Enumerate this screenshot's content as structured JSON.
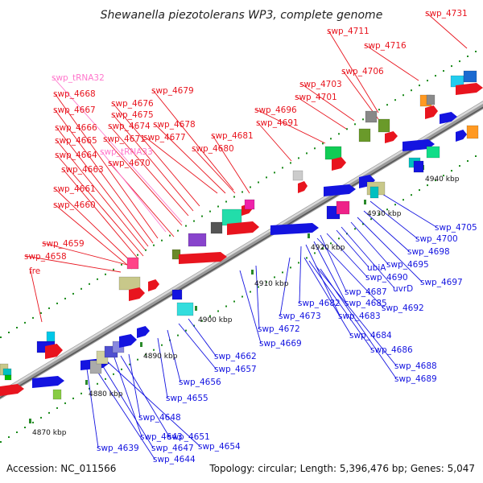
{
  "title": "Shewanella piezotolerans WP3, complete genome",
  "footer": {
    "accession": "Accession: NC_011566",
    "summary": "Topology: circular; Length: 5,396,476 bp; Genes: 5,047"
  },
  "colors": {
    "forward": "#e8141e",
    "reverse": "#1414e0",
    "trna": "#ff77cc",
    "backbone": "#8c8c8c",
    "tick": "#2a8a2a"
  },
  "scale_labels": [
    "4870 kbp",
    "4880 kbp",
    "4890 kbp",
    "4900 kbp",
    "4910 kbp",
    "4920 kbp",
    "4930 kbp",
    "4940 kbp"
  ],
  "labels_forward": [
    "swp_4731",
    "swp_4711",
    "swp_4716",
    "swp_4706",
    "swp_4703",
    "swp_4701",
    "swp_4696",
    "swp_4691",
    "swp_4681",
    "swp_4680",
    "swp_4679",
    "swp_4678",
    "swp_4677",
    "swp_4676",
    "swp_4675",
    "swp_4674",
    "swp_4671",
    "swp_4670",
    "swp_4668",
    "swp_4667",
    "swp_4666",
    "swp_4665",
    "swp_4664",
    "swp_4663",
    "swp_4661",
    "swp_4660",
    "swp_4659",
    "swp_4658",
    "fre"
  ],
  "labels_trna": [
    "swp_tRNA32",
    "swp_tRNA33"
  ],
  "labels_reverse": [
    "swp_4705",
    "swp_4700",
    "swp_4698",
    "swp_4697",
    "swp_4695",
    "uvrD",
    "ubiA",
    "swp_4690",
    "swp_4687",
    "swp_4692",
    "swp_4685",
    "swp_4683",
    "swp_4682",
    "swp_4673",
    "swp_4684",
    "swp_4686",
    "swp_4688",
    "swp_4689",
    "swp_4672",
    "swp_4669",
    "swp_4662",
    "swp_4657",
    "swp_4656",
    "swp_4655",
    "swp_4648",
    "swp_4651",
    "swp_4643",
    "swp_4654",
    "swp_4647",
    "swp_4639",
    "swp_4644"
  ]
}
